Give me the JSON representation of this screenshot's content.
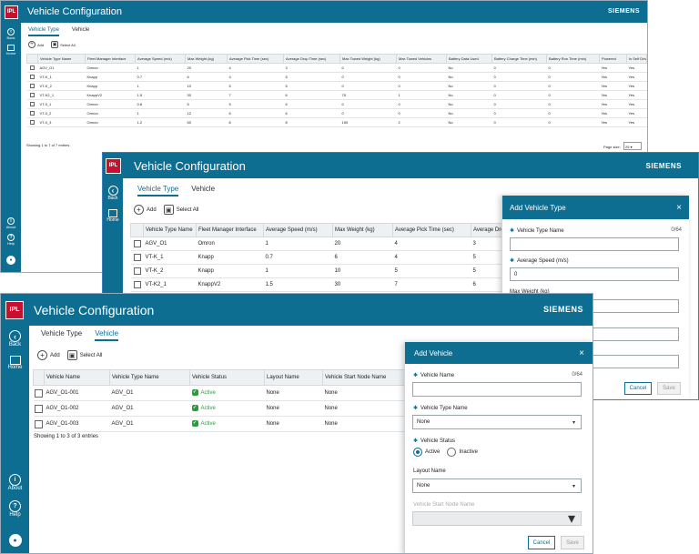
{
  "app": {
    "title": "Vehicle Configuration",
    "brand": "SIEMENS",
    "logo": "IPL",
    "back": "Back",
    "home": "Home",
    "about": "About",
    "help": "Help"
  },
  "tabs": {
    "type": "Vehicle Type",
    "vehicle": "Vehicle"
  },
  "toolbar": {
    "add": "Add",
    "select_all": "Select All"
  },
  "w1": {
    "columns": [
      "Vehicle Type Name",
      "Fleet Manager Interface",
      "Average Speed (m/s)",
      "Max Weight (kg)",
      "Average Pick Time (sec)",
      "Average Drop Time (sec)",
      "Max Towed Weight (kg)",
      "Max Towed Vehicles",
      "Battery Data Used",
      "Battery Charge Time (min)",
      "Battery Run Time (min)",
      "Powered",
      "Is Self Drive"
    ],
    "rows": [
      [
        "AGV_O1",
        "Omron",
        "1",
        "20",
        "4",
        "3",
        "0",
        "0",
        "No",
        "0",
        "0",
        "Yes",
        "Yes"
      ],
      [
        "VT-K_1",
        "Knapp",
        "0.7",
        "6",
        "4",
        "5",
        "0",
        "0",
        "No",
        "0",
        "0",
        "Yes",
        "Yes"
      ],
      [
        "VT-K_2",
        "Knapp",
        "1",
        "10",
        "5",
        "5",
        "0",
        "0",
        "No",
        "0",
        "0",
        "Yes",
        "Yes"
      ],
      [
        "VT-K2_1",
        "KnappV2",
        "1.5",
        "30",
        "7",
        "6",
        "75",
        "1",
        "No",
        "0",
        "0",
        "Yes",
        "Yes"
      ],
      [
        "VT-0_1",
        "Omron",
        "0.8",
        "5",
        "5",
        "6",
        "0",
        "0",
        "No",
        "0",
        "0",
        "Yes",
        "Yes"
      ],
      [
        "VT-0_2",
        "Omron",
        "1",
        "12",
        "6",
        "6",
        "0",
        "0",
        "No",
        "0",
        "0",
        "Yes",
        "Yes"
      ],
      [
        "VT-0_3",
        "Omron",
        "1.2",
        "50",
        "8",
        "8",
        "150",
        "2",
        "No",
        "0",
        "0",
        "Yes",
        "Yes"
      ]
    ],
    "footer": "Showing 1 to 7 of 7 entries",
    "page_size_label": "Page size:",
    "page_size": "25"
  },
  "w2": {
    "columns": [
      "Vehicle Type Name",
      "Fleet Manager Interface",
      "Average Speed (m/s)",
      "Max Weight (kg)",
      "Average Pick Time (sec)",
      "Average Dro"
    ],
    "rows": [
      [
        "AGV_O1",
        "Omron",
        "1",
        "20",
        "4",
        "3"
      ],
      [
        "VT-K_1",
        "Knapp",
        "0.7",
        "6",
        "4",
        "5"
      ],
      [
        "VT-K_2",
        "Knapp",
        "1",
        "10",
        "5",
        "5"
      ],
      [
        "VT-K2_1",
        "KnappV2",
        "1.5",
        "30",
        "7",
        "6"
      ]
    ],
    "panel": {
      "title": "Add Vehicle Type",
      "name_label": "Vehicle Type Name",
      "count": "0/64",
      "speed_label": "Average Speed (m/s)",
      "speed_value": "0",
      "weight_label": "Max Weight (kg)",
      "cancel": "Cancel",
      "save": "Save"
    }
  },
  "w3": {
    "columns": [
      "Vehicle Name",
      "Vehicle Type Name",
      "Vehicle Status",
      "Layout Name",
      "Vehicle Start Node Name"
    ],
    "rows": [
      [
        "AGV_O1-001",
        "AGV_O1",
        "Active",
        "None",
        "None"
      ],
      [
        "AGV_O1-002",
        "AGV_O1",
        "Active",
        "None",
        "None"
      ],
      [
        "AGV_O1-003",
        "AGV_O1",
        "Active",
        "None",
        "None"
      ]
    ],
    "footer": "Showing 1 to 3 of 3 entries",
    "panel": {
      "title": "Add Vehicle",
      "name_label": "Vehicle Name",
      "count": "0/64",
      "type_label": "Vehicle Type Name",
      "type_value": "None",
      "status_label": "Vehicle Status",
      "active": "Active",
      "inactive": "Inactive",
      "layout_label": "Layout Name",
      "layout_value": "None",
      "start_label": "Vehicle Start Node Name",
      "cancel": "Cancel",
      "save": "Save"
    }
  },
  "colors": {
    "primary": "#0e6e92",
    "logo": "#c8102e",
    "active": "#2a9d3a"
  }
}
